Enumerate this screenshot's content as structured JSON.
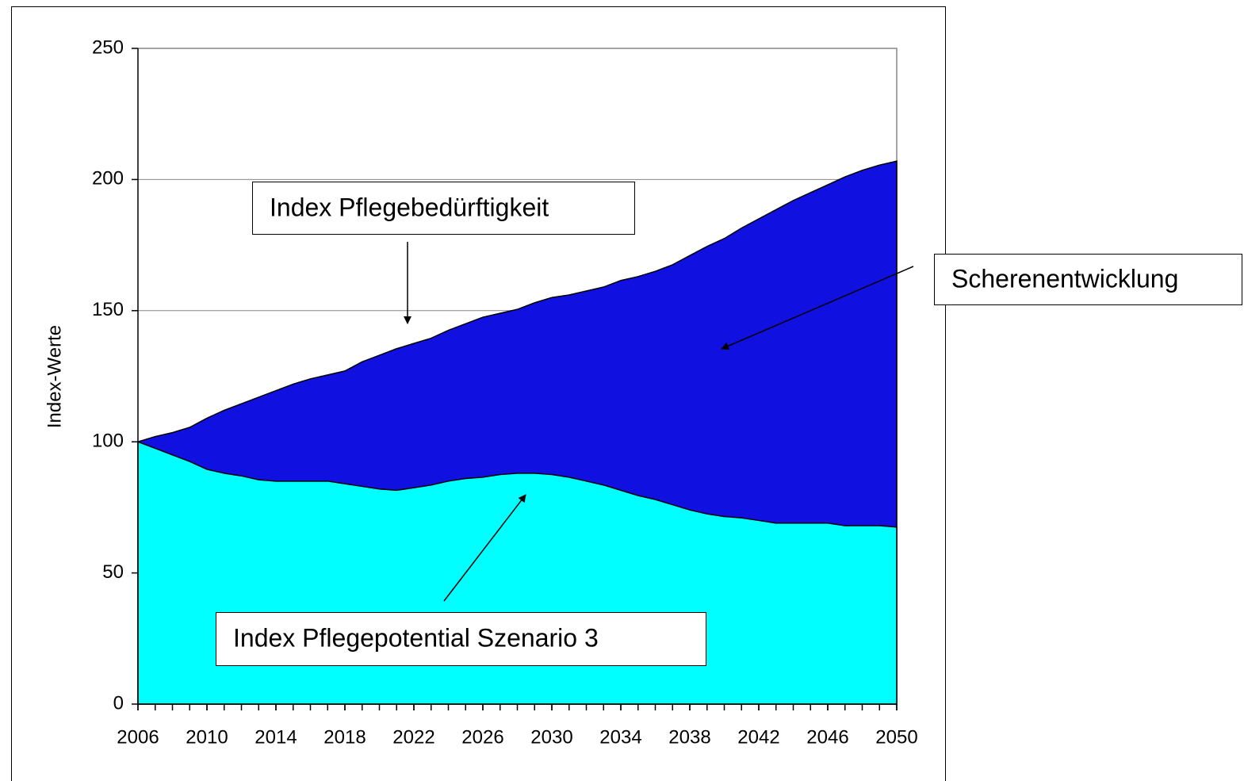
{
  "chart_data": {
    "type": "area",
    "y_label": "Index-Werte",
    "x": [
      2006,
      2007,
      2008,
      2009,
      2010,
      2011,
      2012,
      2013,
      2014,
      2015,
      2016,
      2017,
      2018,
      2019,
      2020,
      2021,
      2022,
      2023,
      2024,
      2025,
      2026,
      2027,
      2028,
      2029,
      2030,
      2031,
      2032,
      2033,
      2034,
      2035,
      2036,
      2037,
      2038,
      2039,
      2040,
      2041,
      2042,
      2043,
      2044,
      2045,
      2046,
      2047,
      2048,
      2049,
      2050
    ],
    "series": [
      {
        "name": "Index Pflegebedürftigkeit",
        "color": "#1010e0",
        "values": [
          100,
          102,
          103.5,
          105.5,
          109,
          112,
          114.5,
          117,
          119.5,
          122,
          124,
          125.5,
          127,
          130.5,
          133,
          135.5,
          137.5,
          139.5,
          142.5,
          145,
          147.5,
          149,
          150.5,
          153,
          155,
          156,
          157.5,
          159,
          161.5,
          163,
          165,
          167.5,
          171,
          174.5,
          177.5,
          181.5,
          185,
          188.5,
          192,
          195,
          198,
          201,
          203.5,
          205.5,
          207
        ]
      },
      {
        "name": "Index Pflegepotential Szenario 3",
        "color": "#00ffff",
        "values": [
          100,
          97.5,
          95,
          92.5,
          89.5,
          88,
          87,
          85.5,
          85,
          85,
          85,
          85,
          84,
          83,
          82,
          81.5,
          82.5,
          83.5,
          85,
          86,
          86.5,
          87.5,
          88,
          88,
          87.5,
          86.5,
          85,
          83.5,
          81.5,
          79.5,
          78,
          76,
          74,
          72.5,
          71.5,
          71,
          70,
          69,
          69,
          69,
          69,
          68,
          68,
          68,
          67.5
        ]
      }
    ],
    "annotations": [
      "Scherenentwicklung"
    ],
    "xlim": [
      2006,
      2050
    ],
    "xticks": [
      2006,
      2010,
      2014,
      2018,
      2022,
      2026,
      2030,
      2034,
      2038,
      2042,
      2046,
      2050
    ],
    "ylim": [
      0,
      250
    ],
    "yticks": [
      0,
      50,
      100,
      150,
      200,
      250
    ],
    "grid": true
  }
}
